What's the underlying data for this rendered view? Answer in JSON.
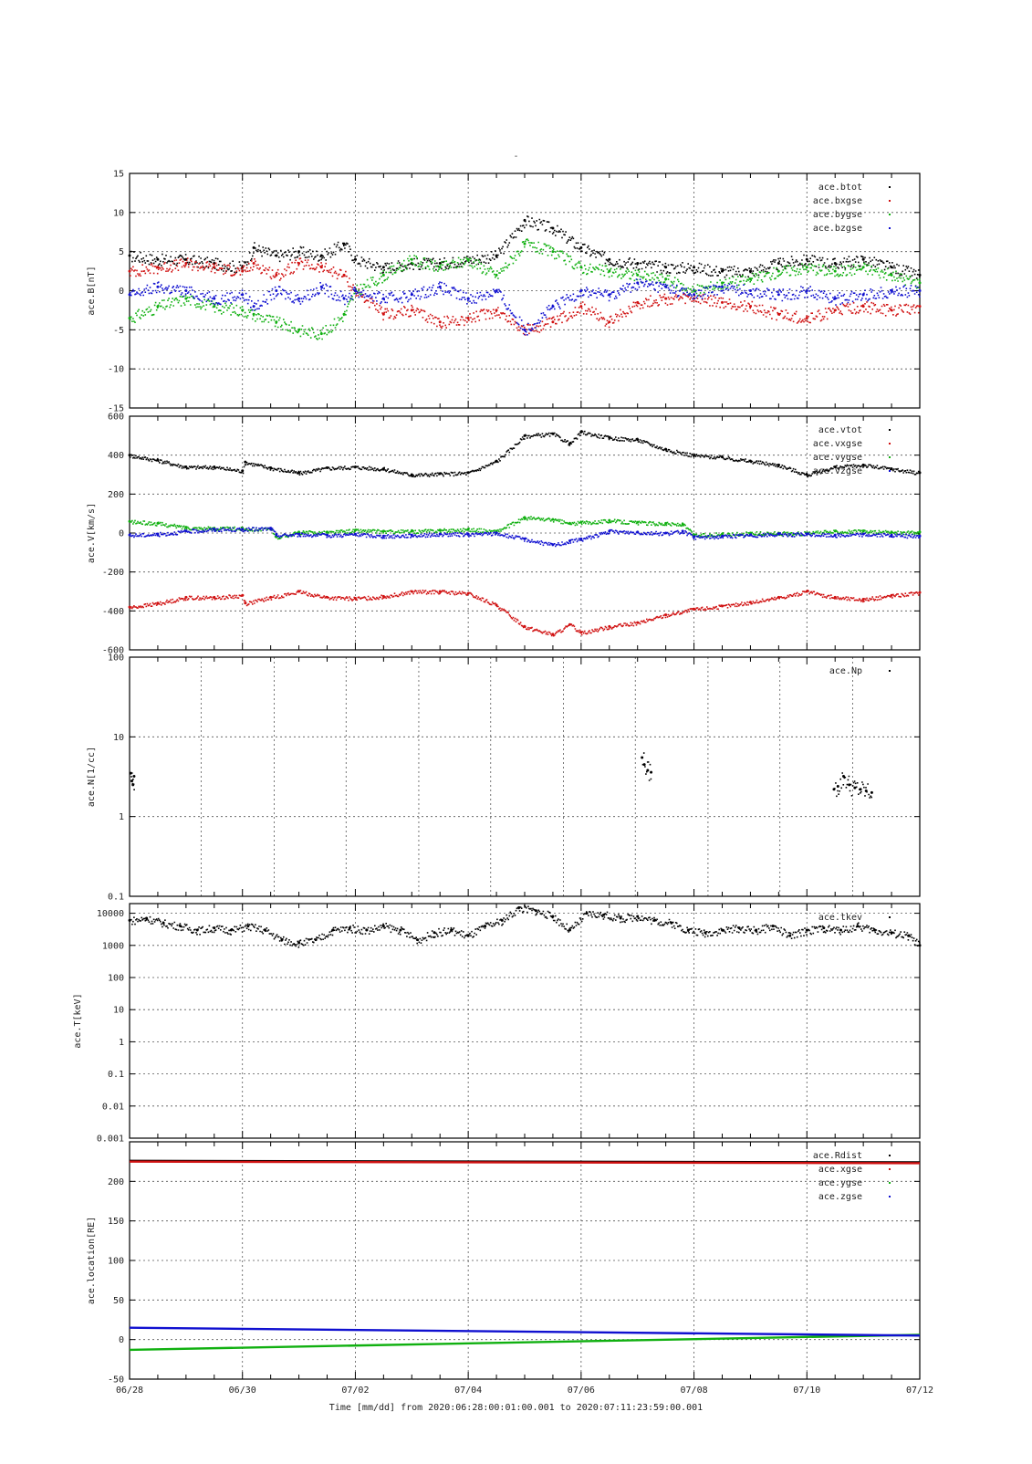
{
  "title": "-",
  "footer": "Time [mm/dd]  from 2020:06:28:00:01:00.001  to  2020:07:11:23:59:00.001",
  "time_axis": {
    "ticks": [
      "06/28",
      "06/30",
      "07/02",
      "07/04",
      "07/06",
      "07/08",
      "07/10",
      "07/12"
    ],
    "range": [
      0,
      14
    ]
  },
  "chart_data": [
    {
      "type": "scatter",
      "ylabel": "ace.B[nT]",
      "ylim": [
        -15,
        15
      ],
      "yticks": [
        15,
        10,
        5,
        0,
        -5,
        -10,
        -15
      ],
      "scale": "linear",
      "grid": true,
      "legend_position": "top-right",
      "series": [
        {
          "name": "ace.btot",
          "color": "#000000",
          "x": [
            0,
            0.5,
            1,
            1.5,
            2,
            2.2,
            2.6,
            3,
            3.4,
            3.8,
            4,
            4.5,
            5,
            5.5,
            6,
            6.5,
            7,
            7.5,
            8,
            8.5,
            9,
            9.5,
            10,
            10.5,
            11,
            11.5,
            12,
            12.5,
            13,
            13.5,
            14
          ],
          "y": [
            4.5,
            4,
            4,
            3.5,
            3,
            5.5,
            4.5,
            5,
            4.5,
            6,
            4,
            3,
            3.5,
            3.5,
            4,
            4.5,
            9,
            8,
            5.5,
            4,
            3.5,
            3,
            3,
            2.5,
            2.5,
            3.5,
            4,
            3.5,
            4,
            3,
            2
          ]
        },
        {
          "name": "ace.bxgse",
          "color": "#d01010",
          "x": [
            0,
            0.5,
            1,
            1.5,
            2,
            2.2,
            2.6,
            3,
            3.4,
            3.8,
            4,
            4.5,
            5,
            5.5,
            6,
            6.5,
            7,
            7.5,
            8,
            8.5,
            9,
            9.5,
            10,
            10.5,
            11,
            11.5,
            12,
            12.5,
            13,
            13.5,
            14
          ],
          "y": [
            2.5,
            3,
            3.5,
            3,
            2.5,
            3.5,
            2,
            3.5,
            3,
            2,
            0,
            -3,
            -2.5,
            -4,
            -3.5,
            -2.5,
            -5,
            -4,
            -2,
            -4,
            -1.5,
            -1,
            -1,
            -1.5,
            -2,
            -3,
            -3.5,
            -2.5,
            -2,
            -2.5,
            -2
          ]
        },
        {
          "name": "ace.bygse",
          "color": "#10b010",
          "x": [
            0,
            0.5,
            1,
            1.5,
            2,
            2.2,
            2.6,
            3,
            3.4,
            3.8,
            4,
            4.5,
            5,
            5.5,
            6,
            6.5,
            7,
            7.5,
            8,
            8.5,
            9,
            9.5,
            10,
            10.5,
            11,
            11.5,
            12,
            12.5,
            13,
            13.5,
            14
          ],
          "y": [
            -3.5,
            -2,
            -1,
            -2,
            -2.5,
            -3,
            -4,
            -5,
            -5.5,
            -3,
            0,
            2,
            4,
            3,
            4,
            2,
            6,
            5,
            3,
            2.5,
            2,
            1.5,
            0,
            1,
            1.5,
            2.5,
            3,
            2.5,
            3,
            2,
            1
          ]
        },
        {
          "name": "ace.bzgse",
          "color": "#1010d0",
          "x": [
            0,
            0.5,
            1,
            1.5,
            2,
            2.2,
            2.6,
            3,
            3.4,
            3.8,
            4,
            4.5,
            5,
            5.5,
            6,
            6.5,
            7,
            7.5,
            8,
            8.5,
            9,
            9.5,
            10,
            10.5,
            11,
            11.5,
            12,
            12.5,
            13,
            13.5,
            14
          ],
          "y": [
            -0.5,
            0.5,
            0,
            -1,
            -0.5,
            -2,
            0,
            -1,
            0.5,
            -1,
            0,
            -1,
            -0.5,
            0.5,
            -1,
            0,
            -5,
            -2,
            0,
            -0.5,
            1,
            0.5,
            -0.5,
            0.5,
            0,
            -0.5,
            0,
            -1,
            -0.5,
            0,
            0
          ]
        }
      ]
    },
    {
      "type": "scatter",
      "ylabel": "ace.V[km/s]",
      "ylim": [
        -600,
        600
      ],
      "yticks": [
        600,
        400,
        200,
        0,
        -200,
        -400,
        -600
      ],
      "scale": "linear",
      "grid": true,
      "legend_position": "top-right",
      "series": [
        {
          "name": "ace.vtot",
          "color": "#000000",
          "x": [
            0,
            0.5,
            1,
            1.5,
            2,
            2.05,
            2.5,
            3,
            3.5,
            4,
            4.5,
            5,
            5.5,
            6,
            6.5,
            7,
            7.5,
            7.8,
            8,
            8.5,
            9,
            9.5,
            10,
            10.5,
            11,
            11.5,
            12,
            12.5,
            13,
            13.5,
            14
          ],
          "y": [
            400,
            375,
            340,
            340,
            320,
            365,
            335,
            310,
            335,
            340,
            330,
            300,
            305,
            310,
            370,
            500,
            510,
            460,
            520,
            490,
            480,
            430,
            400,
            390,
            370,
            350,
            300,
            340,
            350,
            330,
            310
          ]
        },
        {
          "name": "ace.vxgse",
          "color": "#d01010",
          "x": [
            0,
            0.5,
            1,
            1.5,
            2,
            2.05,
            2.5,
            3,
            3.5,
            4,
            4.5,
            5,
            5.5,
            6,
            6.5,
            7,
            7.5,
            7.8,
            8,
            8.5,
            9,
            9.5,
            10,
            10.5,
            11,
            11.5,
            12,
            12.5,
            13,
            13.5,
            14
          ],
          "y": [
            -380,
            -360,
            -330,
            -330,
            -320,
            -360,
            -330,
            -300,
            -330,
            -335,
            -325,
            -300,
            -300,
            -310,
            -370,
            -480,
            -520,
            -470,
            -510,
            -480,
            -460,
            -420,
            -390,
            -375,
            -355,
            -330,
            -300,
            -330,
            -340,
            -320,
            -305
          ]
        },
        {
          "name": "ace.vygse",
          "color": "#10b010",
          "x": [
            0,
            0.5,
            1,
            1.5,
            2,
            2.5,
            2.6,
            3,
            3.5,
            4,
            4.5,
            5,
            5.5,
            6,
            6.5,
            7,
            7.5,
            7.8,
            8,
            8.5,
            9,
            9.5,
            9.8,
            10,
            10.5,
            11,
            11.5,
            12,
            12.5,
            13,
            13.5,
            14
          ],
          "y": [
            60,
            50,
            30,
            25,
            25,
            20,
            -20,
            5,
            5,
            15,
            10,
            10,
            15,
            20,
            10,
            80,
            70,
            50,
            55,
            65,
            55,
            50,
            45,
            -10,
            -5,
            0,
            0,
            0,
            10,
            10,
            5,
            5
          ]
        },
        {
          "name": "ace.vzgse",
          "color": "#1010d0",
          "x": [
            0,
            0.5,
            1,
            1.5,
            2,
            2.5,
            2.6,
            3,
            3.5,
            4,
            4.5,
            5,
            5.5,
            6,
            6.5,
            7,
            7.5,
            7.8,
            8,
            8.5,
            9,
            9.5,
            9.8,
            10,
            10.5,
            11,
            11.5,
            12,
            12.5,
            13,
            13.5,
            14
          ],
          "y": [
            -10,
            -5,
            10,
            20,
            20,
            25,
            -10,
            -5,
            -10,
            -5,
            -15,
            -10,
            -5,
            -5,
            0,
            -30,
            -60,
            -40,
            -30,
            10,
            5,
            0,
            10,
            -20,
            -15,
            -10,
            -5,
            -5,
            -10,
            -5,
            -10,
            -15
          ]
        }
      ]
    },
    {
      "type": "scatter",
      "ylabel": "ace.N[1/cc]",
      "ylim": [
        0.1,
        100
      ],
      "yticks": [
        100,
        10,
        1,
        0.1
      ],
      "scale": "log",
      "grid": true,
      "grid_x_fraction": [
        0.0905,
        0.183,
        0.274,
        0.366,
        0.457,
        0.549,
        0.64,
        0.732,
        0.823,
        0.915
      ],
      "legend_position": "top-right",
      "series": [
        {
          "name": "ace.Np",
          "color": "#000000",
          "x": [
            0.02,
            0.04,
            0.06,
            0.08,
            9.08,
            9.12,
            9.18,
            9.24,
            12.48,
            12.55,
            12.65,
            12.75,
            12.85,
            12.95,
            13.05,
            13.15
          ],
          "y": [
            3.5,
            2.8,
            2.5,
            3.2,
            5.5,
            4.5,
            3.8,
            3.6,
            2.2,
            2.4,
            3.2,
            2.5,
            2.3,
            2.2,
            2.1,
            2.0
          ]
        }
      ]
    },
    {
      "type": "scatter",
      "ylabel": "ace.T[keV]",
      "ylim": [
        0.001,
        20000
      ],
      "yticks": [
        10000,
        1000,
        100,
        10,
        1,
        0.1,
        0.01,
        0.001
      ],
      "scale": "log",
      "grid": true,
      "legend_position": "top-right",
      "series": [
        {
          "name": "ace.tkev",
          "color": "#000000",
          "x": [
            0,
            0.3,
            0.6,
            0.9,
            1.2,
            1.5,
            1.8,
            2.1,
            2.4,
            2.7,
            3.0,
            3.3,
            3.6,
            3.9,
            4.2,
            4.5,
            4.8,
            5.1,
            5.4,
            5.7,
            6.0,
            6.3,
            6.6,
            6.9,
            7.2,
            7.5,
            7.8,
            8.1,
            8.4,
            8.7,
            9.0,
            9.3,
            9.6,
            9.9,
            10.2,
            10.5,
            10.8,
            11.1,
            11.4,
            11.7,
            12.0,
            12.3,
            12.6,
            12.9,
            13.2,
            13.5,
            13.8,
            14.0
          ],
          "y": [
            6000,
            7000,
            5000,
            4000,
            3000,
            3500,
            3000,
            4000,
            3000,
            1500,
            1200,
            1500,
            3000,
            3500,
            3000,
            4000,
            3000,
            1500,
            2500,
            3000,
            2000,
            4000,
            6000,
            15000,
            12000,
            8000,
            3000,
            10000,
            9000,
            7000,
            8000,
            6000,
            5000,
            3000,
            2500,
            3000,
            3500,
            3000,
            4000,
            2000,
            3000,
            3500,
            3000,
            4000,
            3000,
            2500,
            2000,
            1000
          ]
        }
      ]
    },
    {
      "type": "line",
      "ylabel": "ace.location[RE]",
      "ylim": [
        -50,
        250
      ],
      "yticks": [
        200,
        150,
        100,
        50,
        0,
        -50
      ],
      "scale": "linear",
      "grid": true,
      "legend_position": "top-right",
      "series": [
        {
          "name": "ace.Rdist",
          "color": "#000000",
          "x": [
            0,
            14
          ],
          "y": [
            226,
            224
          ]
        },
        {
          "name": "ace.xgse",
          "color": "#d01010",
          "x": [
            0,
            14
          ],
          "y": [
            225,
            223
          ]
        },
        {
          "name": "ace.ygse",
          "color": "#10b010",
          "x": [
            0,
            14
          ],
          "y": [
            -13,
            6
          ]
        },
        {
          "name": "ace.zgse",
          "color": "#1010d0",
          "x": [
            0,
            14
          ],
          "y": [
            15,
            5
          ]
        }
      ]
    }
  ]
}
